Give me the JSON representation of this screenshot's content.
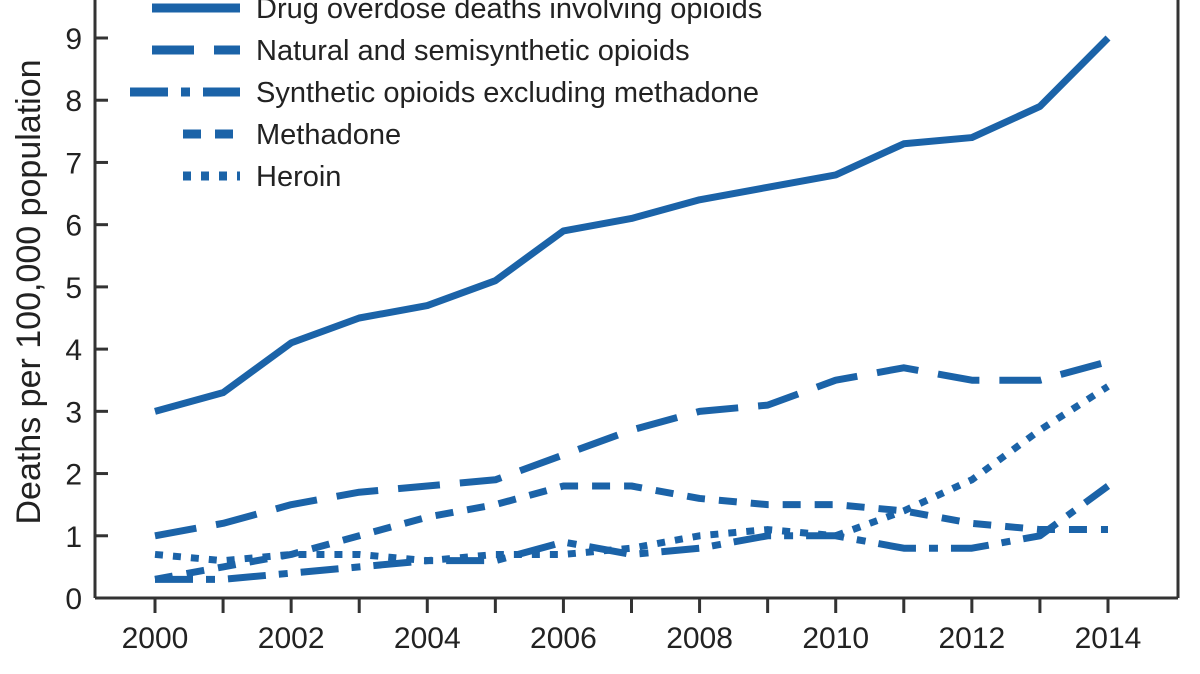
{
  "colors": {
    "series": "#1b63a8",
    "axis": "#333333",
    "text": "#222222"
  },
  "chart_data": {
    "type": "line",
    "ylabel": "Deaths per 100,000 population",
    "xlabel": "",
    "xlim": [
      2000,
      2014
    ],
    "ylim": [
      0,
      9
    ],
    "yticks": [
      "0",
      "1",
      "2",
      "3",
      "4",
      "5",
      "6",
      "7",
      "8",
      "9"
    ],
    "xtick_labels": [
      "2000",
      "2002",
      "2004",
      "2006",
      "2008",
      "2010",
      "2012",
      "2014"
    ],
    "x": [
      2000,
      2001,
      2002,
      2003,
      2004,
      2005,
      2006,
      2007,
      2008,
      2009,
      2010,
      2011,
      2012,
      2013,
      2014
    ],
    "legend_position": "top-left",
    "series": [
      {
        "name": "Drug overdose deaths involving opioids",
        "style": "solid",
        "values": [
          3.0,
          3.3,
          4.1,
          4.5,
          4.7,
          5.1,
          5.9,
          6.1,
          6.4,
          6.6,
          6.8,
          7.3,
          7.4,
          7.9,
          9.0
        ]
      },
      {
        "name": "Natural and semisynthetic opioids",
        "style": "long-dash",
        "values": [
          1.0,
          1.2,
          1.5,
          1.7,
          1.8,
          1.9,
          2.3,
          2.7,
          3.0,
          3.1,
          3.5,
          3.7,
          3.5,
          3.5,
          3.8
        ]
      },
      {
        "name": "Synthetic opioids excluding methadone",
        "style": "dash-dot",
        "values": [
          0.3,
          0.3,
          0.4,
          0.5,
          0.6,
          0.6,
          0.9,
          0.7,
          0.8,
          1.0,
          1.0,
          0.8,
          0.8,
          1.0,
          1.8
        ]
      },
      {
        "name": "Methadone",
        "style": "dash",
        "values": [
          0.3,
          0.5,
          0.7,
          1.0,
          1.3,
          1.5,
          1.8,
          1.8,
          1.6,
          1.5,
          1.5,
          1.4,
          1.2,
          1.1,
          1.1
        ]
      },
      {
        "name": "Heroin",
        "style": "dot",
        "values": [
          0.7,
          0.6,
          0.7,
          0.7,
          0.6,
          0.7,
          0.7,
          0.8,
          1.0,
          1.1,
          1.0,
          1.4,
          1.9,
          2.7,
          3.4
        ]
      }
    ]
  }
}
